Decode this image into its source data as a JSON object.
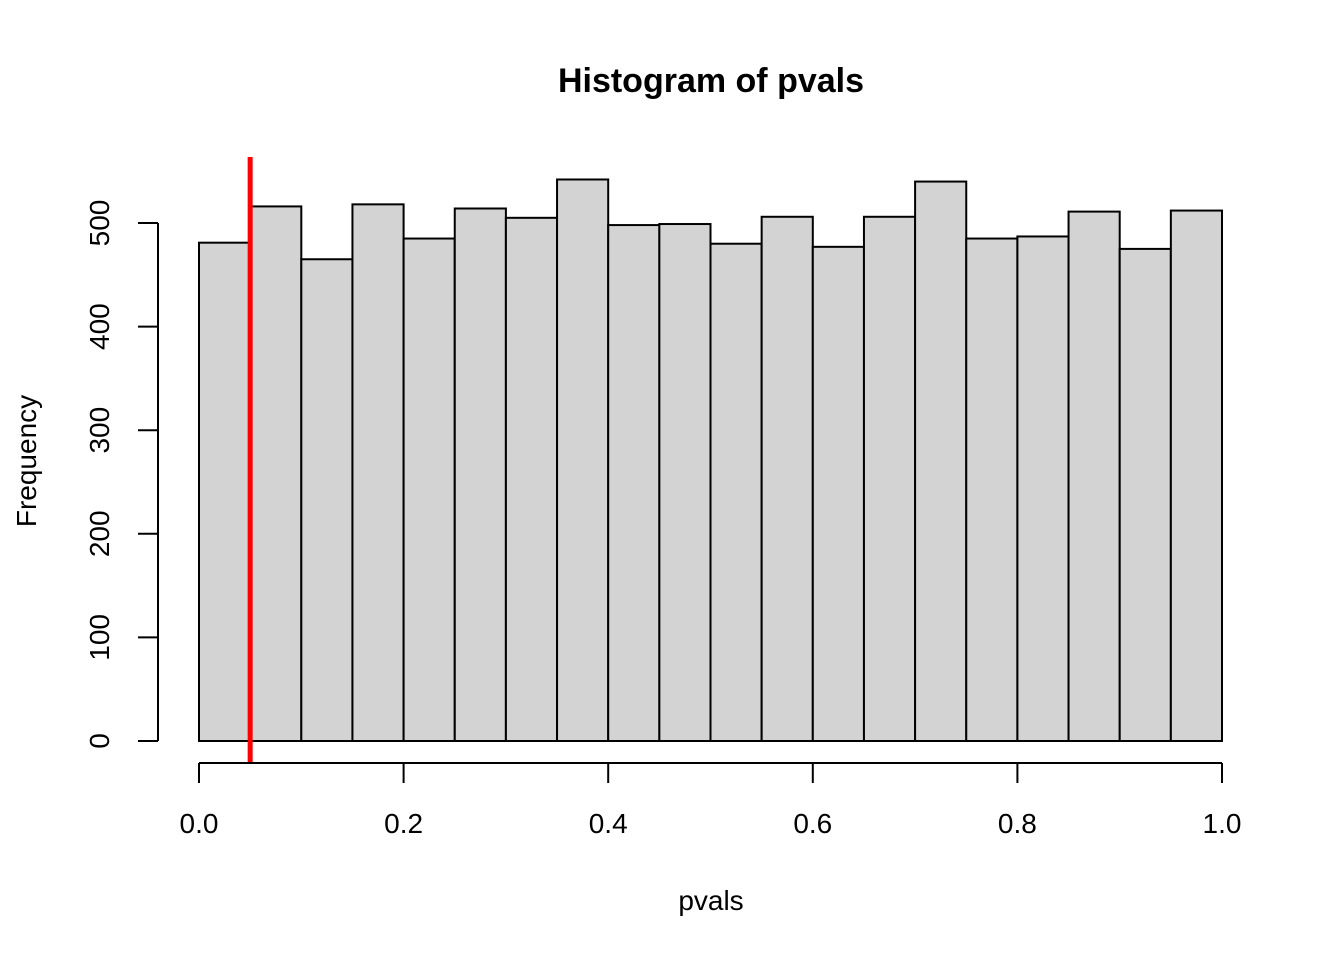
{
  "chart_data": {
    "type": "bar",
    "title": "Histogram of pvals",
    "xlabel": "pvals",
    "ylabel": "Frequency",
    "bin_edges": [
      0.0,
      0.05,
      0.1,
      0.15,
      0.2,
      0.25,
      0.3,
      0.35,
      0.4,
      0.45,
      0.5,
      0.55,
      0.6,
      0.65,
      0.7,
      0.75,
      0.8,
      0.85,
      0.9,
      0.95,
      1.0
    ],
    "values": [
      481,
      516,
      465,
      518,
      485,
      514,
      505,
      542,
      498,
      499,
      480,
      506,
      477,
      506,
      540,
      485,
      487,
      511,
      475,
      512
    ],
    "xlim": [
      0,
      1
    ],
    "ylim": [
      0,
      542
    ],
    "x_ticks": [
      0.0,
      0.2,
      0.4,
      0.6,
      0.8,
      1.0
    ],
    "x_tick_labels": [
      "0.0",
      "0.2",
      "0.4",
      "0.6",
      "0.8",
      "1.0"
    ],
    "y_ticks": [
      0,
      100,
      200,
      300,
      400,
      500
    ],
    "y_tick_labels": [
      "0",
      "100",
      "200",
      "300",
      "400",
      "500"
    ],
    "vline": {
      "x": 0.05,
      "color": "#ff0000"
    },
    "bar_color": "#d3d3d3",
    "grid": false,
    "legend": "none"
  }
}
